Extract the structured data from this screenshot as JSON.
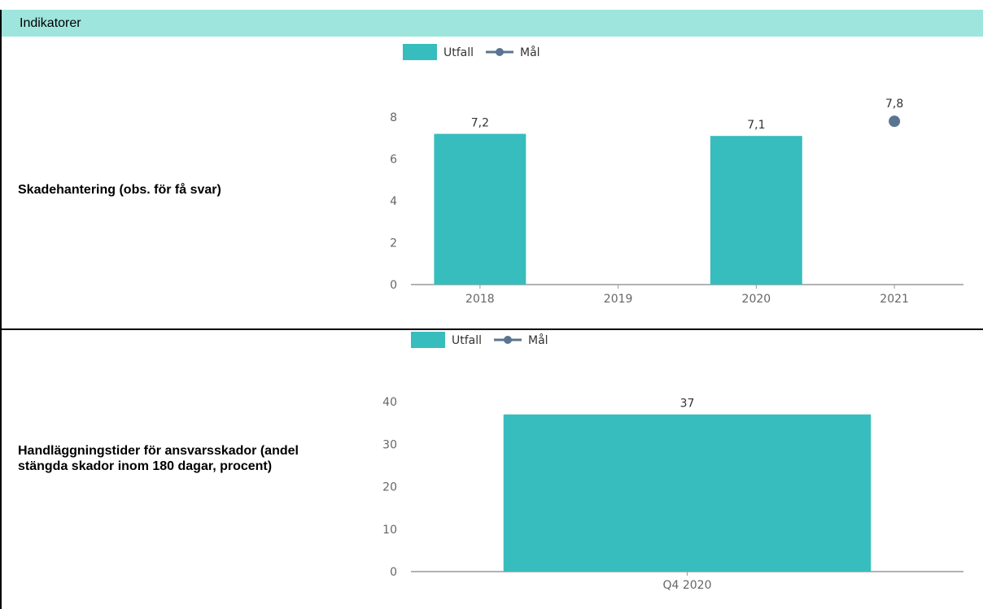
{
  "header": {
    "title": "Indikatorer"
  },
  "colors": {
    "header_bg": "#9ee5dd",
    "bar": "#37bdbd",
    "goal": "#5b7590",
    "axis": "#999999",
    "tick_text": "#666666",
    "label_text": "#333333"
  },
  "rows": [
    {
      "label": "Skadehantering (obs. för få svar)",
      "chart_data": {
        "type": "bar",
        "categories": [
          "2018",
          "2019",
          "2020",
          "2021"
        ],
        "series": [
          {
            "name": "Utfall",
            "type": "bar",
            "values": [
              7.2,
              null,
              7.1,
              null
            ],
            "labels": [
              "7,2",
              "",
              "7,1",
              ""
            ]
          },
          {
            "name": "Mål",
            "type": "point",
            "values": [
              null,
              null,
              null,
              7.8
            ],
            "labels": [
              "",
              "",
              "",
              "7,8"
            ]
          }
        ],
        "yticks": [
          0,
          2,
          4,
          6,
          8
        ],
        "ylim": [
          0,
          8
        ]
      }
    },
    {
      "label": "Handläggningstider för ansvarsskador (andel stängda skador inom 180 dagar, procent)",
      "chart_data": {
        "type": "bar",
        "categories": [
          "Q4 2020"
        ],
        "series": [
          {
            "name": "Utfall",
            "type": "bar",
            "values": [
              37
            ],
            "labels": [
              "37"
            ]
          },
          {
            "name": "Mål",
            "type": "point",
            "values": [
              null
            ],
            "labels": [
              ""
            ]
          }
        ],
        "yticks": [
          0,
          10,
          20,
          30,
          40
        ],
        "ylim": [
          0,
          40
        ]
      }
    }
  ]
}
